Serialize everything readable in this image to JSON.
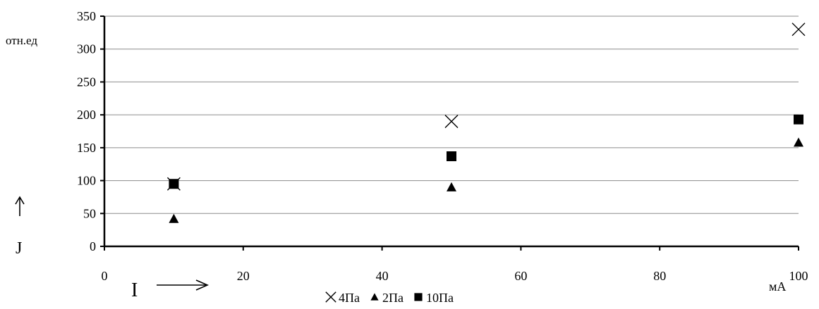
{
  "chart_data": {
    "type": "scatter",
    "title": "",
    "xlabel": "I",
    "ylabel": "J",
    "x_unit": "мА",
    "y_unit": "отн.ед",
    "xlim": [
      0,
      100
    ],
    "ylim": [
      0,
      350
    ],
    "xticks": [
      0,
      20,
      40,
      60,
      80,
      100
    ],
    "yticks": [
      0,
      50,
      100,
      150,
      200,
      250,
      300,
      350
    ],
    "grid": "horizontal",
    "legend_position": "bottom",
    "series": [
      {
        "name": "4Па",
        "marker": "x",
        "points": [
          [
            10,
            95
          ],
          [
            50,
            190
          ],
          [
            100,
            330
          ]
        ]
      },
      {
        "name": "2Па",
        "marker": "triangle",
        "points": [
          [
            10,
            42
          ],
          [
            50,
            90
          ],
          [
            100,
            158
          ]
        ]
      },
      {
        "name": "10Па",
        "marker": "square",
        "points": [
          [
            10,
            95
          ],
          [
            50,
            137
          ],
          [
            100,
            193
          ]
        ]
      }
    ]
  }
}
